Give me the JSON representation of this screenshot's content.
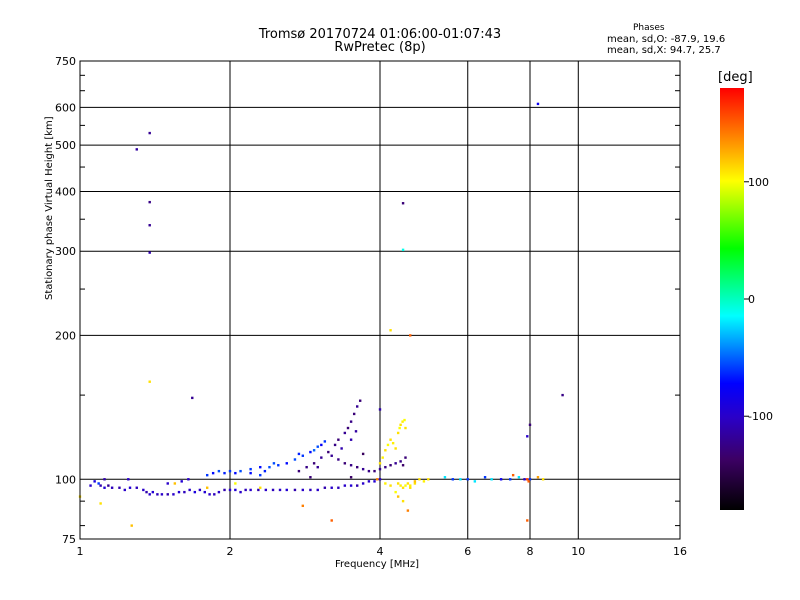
{
  "header": {
    "title": "Tromsø 20170724 01:06:00-01:07:43",
    "subtitle": "RwPretec (8p)",
    "stats_heading": "Phases",
    "stats_o": "mean, sd,O: -87.9, 19.6",
    "stats_x": "mean, sd,X:  94.7, 25.7"
  },
  "colorbar": {
    "label": "[deg]",
    "range": [
      -180,
      180
    ],
    "ticks": [
      100,
      0,
      -100
    ],
    "tick_labels": [
      "100",
      "0",
      "-100"
    ]
  },
  "chart_data": {
    "type": "scatter",
    "title": "Tromsø 20170724 01:06:00-01:07:43",
    "subtitle": "RwPretec (8p)",
    "xlabel": "Frequency [MHz]",
    "ylabel": "Stationary phase Virtual Height [km]",
    "x_scale": "log",
    "y_scale": "log",
    "xlim": [
      1,
      16
    ],
    "ylim": [
      75,
      750
    ],
    "x_ticks": [
      1,
      2,
      4,
      6,
      8,
      10,
      16
    ],
    "x_tick_labels": [
      "1",
      "2",
      "4",
      "6",
      "8",
      "10",
      "16"
    ],
    "y_ticks": [
      75,
      100,
      200,
      300,
      400,
      500,
      600,
      750
    ],
    "y_tick_labels": [
      "75",
      "100",
      "200",
      "300",
      "400",
      "500",
      "600",
      "750"
    ],
    "grid": true,
    "color_variable": "phase [deg]",
    "points": [
      [
        1.05,
        97,
        -100
      ],
      [
        1.07,
        99,
        -90
      ],
      [
        1.09,
        98,
        -60
      ],
      [
        1.1,
        97,
        -110
      ],
      [
        1.12,
        96,
        -95
      ],
      [
        1.14,
        97,
        -120
      ],
      [
        1.16,
        96,
        -105
      ],
      [
        1.2,
        96,
        -110
      ],
      [
        1.23,
        95,
        -100
      ],
      [
        1.26,
        96,
        -95
      ],
      [
        1.3,
        96,
        -105
      ],
      [
        1.34,
        95,
        -100
      ],
      [
        1.36,
        94,
        -110
      ],
      [
        1.38,
        93,
        -100
      ],
      [
        1.4,
        94,
        -95
      ],
      [
        1.43,
        93,
        -105
      ],
      [
        1.46,
        93,
        -100
      ],
      [
        1.5,
        93,
        -110
      ],
      [
        1.54,
        93,
        -100
      ],
      [
        1.58,
        94,
        -95
      ],
      [
        1.62,
        94,
        -105
      ],
      [
        1.66,
        95,
        -100
      ],
      [
        1.7,
        94,
        -90
      ],
      [
        1.74,
        95,
        -100
      ],
      [
        1.78,
        94,
        -95
      ],
      [
        1.82,
        93,
        -100
      ],
      [
        1.86,
        93,
        -105
      ],
      [
        1.9,
        94,
        -100
      ],
      [
        1.95,
        95,
        -110
      ],
      [
        2.0,
        95,
        -100
      ],
      [
        2.05,
        95,
        -95
      ],
      [
        2.1,
        94,
        -100
      ],
      [
        2.15,
        95,
        -105
      ],
      [
        2.2,
        95,
        -100
      ],
      [
        2.28,
        95,
        -110
      ],
      [
        2.36,
        95,
        -100
      ],
      [
        2.44,
        95,
        -105
      ],
      [
        2.52,
        95,
        -100
      ],
      [
        2.6,
        95,
        -95
      ],
      [
        2.7,
        95,
        -110
      ],
      [
        2.8,
        95,
        -100
      ],
      [
        2.9,
        95,
        -105
      ],
      [
        3.0,
        95,
        -100
      ],
      [
        3.1,
        96,
        -110
      ],
      [
        3.2,
        96,
        -100
      ],
      [
        3.3,
        96,
        -105
      ],
      [
        3.4,
        97,
        -100
      ],
      [
        3.5,
        97,
        -95
      ],
      [
        3.6,
        97,
        -110
      ],
      [
        3.7,
        98,
        -100
      ],
      [
        3.8,
        99,
        -100
      ],
      [
        3.9,
        99,
        -95
      ],
      [
        4.0,
        100,
        -100
      ],
      [
        1.12,
        100,
        -110
      ],
      [
        1.25,
        100,
        -100
      ],
      [
        1.5,
        98,
        -100
      ],
      [
        1.6,
        99,
        -95
      ],
      [
        1.65,
        100,
        -100
      ],
      [
        1.8,
        102,
        -60
      ],
      [
        1.85,
        103,
        -70
      ],
      [
        1.9,
        104,
        -55
      ],
      [
        1.95,
        103,
        -65
      ],
      [
        2.0,
        104,
        -60
      ],
      [
        2.05,
        103,
        -70
      ],
      [
        2.1,
        104,
        -55
      ],
      [
        2.2,
        105,
        -60
      ],
      [
        2.3,
        106,
        -70
      ],
      [
        2.4,
        106,
        -55
      ],
      [
        2.5,
        107,
        -60
      ],
      [
        2.6,
        108,
        -70
      ],
      [
        2.7,
        110,
        -55
      ],
      [
        2.8,
        112,
        -60
      ],
      [
        2.9,
        114,
        -70
      ],
      [
        3.0,
        117,
        -55
      ],
      [
        3.1,
        120,
        -60
      ],
      [
        2.2,
        103,
        -70
      ],
      [
        2.35,
        104,
        -65
      ],
      [
        2.45,
        108,
        -55
      ],
      [
        2.75,
        113,
        -65
      ],
      [
        2.95,
        115,
        -50
      ],
      [
        3.05,
        118,
        -75
      ],
      [
        2.3,
        102,
        -60
      ],
      [
        2.75,
        104,
        -130
      ],
      [
        2.85,
        106,
        -125
      ],
      [
        2.95,
        108,
        -130
      ],
      [
        3.05,
        111,
        -120
      ],
      [
        3.15,
        114,
        -130
      ],
      [
        3.25,
        118,
        -125
      ],
      [
        3.3,
        121,
        -130
      ],
      [
        3.4,
        125,
        -120
      ],
      [
        3.45,
        128,
        -130
      ],
      [
        3.5,
        132,
        -125
      ],
      [
        3.55,
        137,
        -130
      ],
      [
        3.6,
        142,
        -120
      ],
      [
        3.65,
        146,
        -130
      ],
      [
        3.2,
        112,
        -120
      ],
      [
        3.3,
        110,
        -125
      ],
      [
        3.4,
        108,
        -130
      ],
      [
        3.5,
        107,
        -125
      ],
      [
        3.6,
        106,
        -130
      ],
      [
        3.7,
        105,
        -120
      ],
      [
        3.8,
        104,
        -125
      ],
      [
        3.9,
        104,
        -130
      ],
      [
        4.0,
        105,
        -120
      ],
      [
        4.1,
        106,
        -125
      ],
      [
        4.2,
        107,
        -130
      ],
      [
        4.3,
        108,
        -120
      ],
      [
        4.4,
        109,
        -125
      ],
      [
        4.5,
        111,
        -130
      ],
      [
        4.45,
        107,
        -135
      ],
      [
        3.0,
        106,
        -120
      ],
      [
        2.9,
        101,
        -130
      ],
      [
        3.35,
        116,
        -110
      ],
      [
        3.5,
        121,
        -110
      ],
      [
        3.58,
        126,
        -115
      ],
      [
        4.0,
        108,
        110
      ],
      [
        4.05,
        111,
        105
      ],
      [
        4.1,
        115,
        110
      ],
      [
        4.15,
        118,
        100
      ],
      [
        4.2,
        121,
        110
      ],
      [
        4.25,
        119,
        105
      ],
      [
        4.3,
        116,
        110
      ],
      [
        4.35,
        125,
        110
      ],
      [
        4.38,
        128,
        100
      ],
      [
        4.4,
        130,
        110
      ],
      [
        4.44,
        132,
        105
      ],
      [
        4.5,
        128,
        110
      ],
      [
        4.48,
        133,
        100
      ],
      [
        4.35,
        98,
        110
      ],
      [
        4.4,
        97,
        105
      ],
      [
        4.45,
        96,
        110
      ],
      [
        4.5,
        97,
        100
      ],
      [
        4.55,
        98,
        110
      ],
      [
        4.6,
        97,
        105
      ],
      [
        4.7,
        98,
        110
      ],
      [
        4.8,
        100,
        110
      ],
      [
        4.9,
        99,
        105
      ],
      [
        5.0,
        100,
        110
      ],
      [
        4.2,
        97,
        110
      ],
      [
        4.1,
        98,
        105
      ],
      [
        5.4,
        101,
        -20
      ],
      [
        5.6,
        100,
        -60
      ],
      [
        5.8,
        100,
        -20
      ],
      [
        6.0,
        100,
        -60
      ],
      [
        6.2,
        99,
        -20
      ],
      [
        6.5,
        101,
        -60
      ],
      [
        6.7,
        100,
        -20
      ],
      [
        7.0,
        100,
        -80
      ],
      [
        7.3,
        100,
        -60
      ],
      [
        7.6,
        101,
        -20
      ],
      [
        7.8,
        100,
        -100
      ],
      [
        8.0,
        100,
        -60
      ],
      [
        8.3,
        101,
        130
      ],
      [
        8.5,
        100,
        110
      ],
      [
        7.4,
        102,
        150
      ],
      [
        7.9,
        100,
        160
      ],
      [
        7.95,
        99,
        150
      ],
      [
        1.38,
        160,
        110
      ],
      [
        1.55,
        98,
        120
      ],
      [
        1.8,
        96,
        120
      ],
      [
        2.05,
        98,
        100
      ],
      [
        2.3,
        96,
        110
      ],
      [
        2.8,
        88,
        140
      ],
      [
        3.2,
        82,
        150
      ],
      [
        4.3,
        94,
        100
      ],
      [
        4.35,
        92,
        120
      ],
      [
        4.45,
        90,
        110
      ],
      [
        4.55,
        86,
        140
      ],
      [
        7.9,
        82,
        150
      ],
      [
        1.27,
        80,
        120
      ],
      [
        1.1,
        89,
        110
      ],
      [
        1.0,
        92,
        110
      ],
      [
        3.95,
        100,
        140
      ],
      [
        4.6,
        96,
        110
      ],
      [
        4.7,
        99,
        120
      ],
      [
        4.2,
        205,
        110
      ],
      [
        4.6,
        200,
        150
      ],
      [
        1.3,
        490,
        -115
      ],
      [
        1.38,
        530,
        -120
      ],
      [
        1.38,
        380,
        -125
      ],
      [
        1.38,
        340,
        -120
      ],
      [
        1.38,
        298,
        -110
      ],
      [
        1.68,
        148,
        -120
      ],
      [
        4.45,
        378,
        -130
      ],
      [
        4.45,
        302,
        -10
      ],
      [
        8.3,
        610,
        -80
      ],
      [
        8.0,
        130,
        -130
      ],
      [
        9.3,
        150,
        -125
      ],
      [
        7.9,
        123,
        -100
      ],
      [
        4.0,
        140,
        -110
      ],
      [
        3.7,
        113,
        -140
      ],
      [
        3.5,
        101,
        -135
      ]
    ]
  }
}
